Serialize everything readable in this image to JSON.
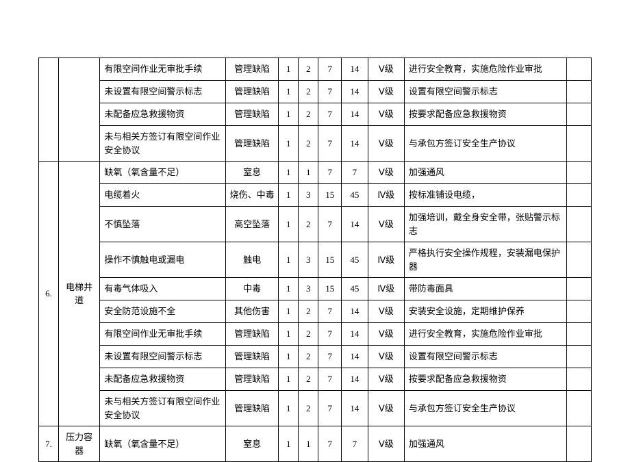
{
  "table": {
    "border_color": "#000000",
    "background_color": "#ffffff",
    "font_size_pt": 10,
    "groups": [
      {
        "seq": "",
        "category": "",
        "rows": [
          {
            "hazard": "有限空间作业无审批手续",
            "type": "管理缺陷",
            "n1": "1",
            "n2": "2",
            "n3": "7",
            "n4": "14",
            "level": "Ⅴ级",
            "measure": "进行安全教育，实施危险作业审批",
            "blank": ""
          },
          {
            "hazard": "未设置有限空间警示标志",
            "type": "管理缺陷",
            "n1": "1",
            "n2": "2",
            "n3": "7",
            "n4": "14",
            "level": "Ⅴ级",
            "measure": "设置有限空间警示标志",
            "blank": ""
          },
          {
            "hazard": "未配备应急救援物资",
            "type": "管理缺陷",
            "n1": "1",
            "n2": "2",
            "n3": "7",
            "n4": "14",
            "level": "Ⅴ级",
            "measure": "按要求配备应急救援物资",
            "blank": ""
          },
          {
            "hazard": "未与相关方签订有限空间作业安全协议",
            "type": "管理缺陷",
            "n1": "1",
            "n2": "2",
            "n3": "7",
            "n4": "14",
            "level": "Ⅴ级",
            "measure": "与承包方签订安全生产协议",
            "blank": ""
          }
        ]
      },
      {
        "seq": "6.",
        "category": "电梯井道",
        "rows": [
          {
            "hazard": "缺氧（氧含量不足）",
            "type": "窒息",
            "n1": "1",
            "n2": "1",
            "n3": "7",
            "n4": "7",
            "level": "Ⅴ级",
            "measure": "加强通风",
            "blank": ""
          },
          {
            "hazard": "电缆着火",
            "type": "烧伤、中毒",
            "n1": "1",
            "n2": "3",
            "n3": "15",
            "n4": "45",
            "level": "Ⅳ级",
            "measure": "按标准铺设电缆，",
            "blank": ""
          },
          {
            "hazard": "不慎坠落",
            "type": "高空坠落",
            "n1": "1",
            "n2": "2",
            "n3": "7",
            "n4": "14",
            "level": "Ⅴ级",
            "measure": "加强培训，戴全身安全带，张贴警示标志",
            "blank": ""
          },
          {
            "hazard": "操作不慎触电或漏电",
            "type": "触电",
            "n1": "1",
            "n2": "3",
            "n3": "15",
            "n4": "45",
            "level": "Ⅳ级",
            "measure": "严格执行安全操作规程，安装漏电保护器",
            "blank": ""
          },
          {
            "hazard": "有毒气体吸入",
            "type": "中毒",
            "n1": "1",
            "n2": "3",
            "n3": "15",
            "n4": "45",
            "level": "Ⅳ级",
            "measure": "带防毒面具",
            "blank": ""
          },
          {
            "hazard": "安全防范设施不全",
            "type": "其他伤害",
            "n1": "1",
            "n2": "2",
            "n3": "7",
            "n4": "14",
            "level": "Ⅴ级",
            "measure": "安装安全设施，定期维护保养",
            "blank": ""
          },
          {
            "hazard": "有限空间作业无审批手续",
            "type": "管理缺陷",
            "n1": "1",
            "n2": "2",
            "n3": "7",
            "n4": "14",
            "level": "Ⅴ级",
            "measure": "进行安全教育，实施危险作业审批",
            "blank": ""
          },
          {
            "hazard": "未设置有限空间警示标志",
            "type": "管理缺陷",
            "n1": "1",
            "n2": "2",
            "n3": "7",
            "n4": "14",
            "level": "Ⅴ级",
            "measure": "设置有限空间警示标志",
            "blank": ""
          },
          {
            "hazard": "未配备应急救援物资",
            "type": "管理缺陷",
            "n1": "1",
            "n2": "2",
            "n3": "7",
            "n4": "14",
            "level": "Ⅴ级",
            "measure": "按要求配备应急救援物资",
            "blank": ""
          },
          {
            "hazard": "未与相关方签订有限空间作业安全协议",
            "type": "管理缺陷",
            "n1": "1",
            "n2": "2",
            "n3": "7",
            "n4": "14",
            "level": "Ⅴ级",
            "measure": "与承包方签订安全生产协议",
            "blank": ""
          }
        ]
      },
      {
        "seq": "7.",
        "category": "压力容器",
        "rows": [
          {
            "hazard": "缺氧（氧含量不足）",
            "type": "窒息",
            "n1": "1",
            "n2": "1",
            "n3": "7",
            "n4": "7",
            "level": "Ⅴ级",
            "measure": "加强通风",
            "blank": ""
          }
        ]
      }
    ]
  }
}
